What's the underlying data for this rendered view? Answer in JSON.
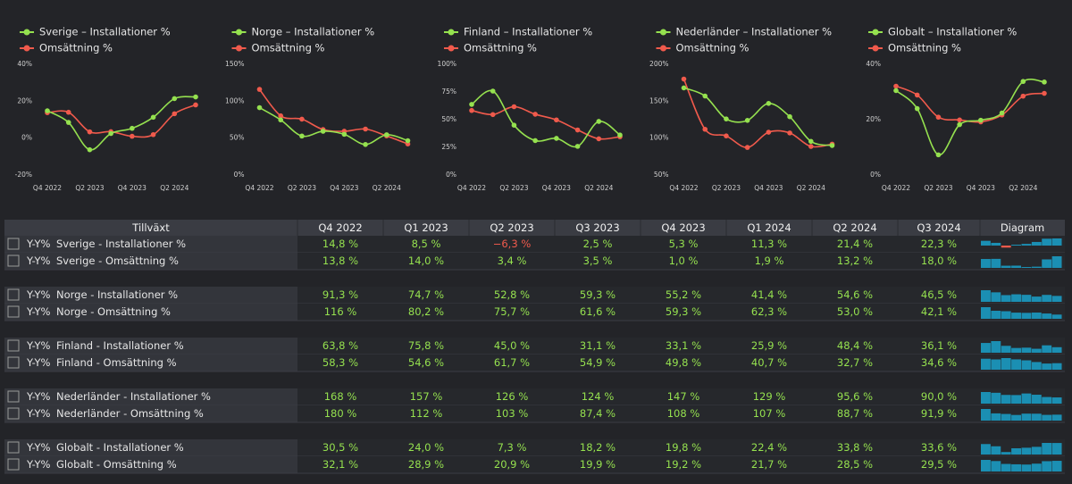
{
  "chart_data": [
    {
      "type": "line",
      "categories": [
        "Q4 2022",
        null,
        "Q2 2023",
        null,
        "Q4 2023",
        null,
        "Q2 2024",
        null
      ],
      "series": [
        {
          "name": "Sverige – Installationer %",
          "color": "#95e14f",
          "values": [
            14.8,
            8.5,
            -6.3,
            2.5,
            5.3,
            11.3,
            21.4,
            22.3
          ]
        },
        {
          "name": "Omsättning %",
          "color": "#f05a4c",
          "values": [
            13.8,
            14.0,
            3.4,
            3.5,
            1.0,
            1.9,
            13.2,
            18.0
          ]
        }
      ],
      "ylim": [
        -20,
        40
      ],
      "yticks": [
        {
          "value": -20,
          "label": "-20%"
        },
        {
          "value": 0,
          "label": "0%"
        },
        {
          "value": 20,
          "label": "20%"
        },
        {
          "value": 40,
          "label": "40%"
        }
      ],
      "grid": false
    },
    {
      "type": "line",
      "categories": [
        "Q4 2022",
        null,
        "Q2 2023",
        null,
        "Q4 2023",
        null,
        "Q2 2024",
        null
      ],
      "series": [
        {
          "name": "Norge – Installationer %",
          "color": "#95e14f",
          "values": [
            91.3,
            74.7,
            52.8,
            59.3,
            55.2,
            41.4,
            54.6,
            46.5
          ]
        },
        {
          "name": "Omsättning %",
          "color": "#f05a4c",
          "values": [
            116,
            80.2,
            75.7,
            61.6,
            59.3,
            62.3,
            53.0,
            42.1
          ]
        }
      ],
      "ylim": [
        0,
        150
      ],
      "yticks": [
        {
          "value": 0,
          "label": "0%"
        },
        {
          "value": 50,
          "label": "50%"
        },
        {
          "value": 100,
          "label": "100%"
        },
        {
          "value": 150,
          "label": "150%"
        }
      ],
      "grid": false
    },
    {
      "type": "line",
      "categories": [
        "Q4 2022",
        null,
        "Q2 2023",
        null,
        "Q4 2023",
        null,
        "Q2 2024",
        null
      ],
      "series": [
        {
          "name": "Finland – Installationer %",
          "color": "#95e14f",
          "values": [
            63.8,
            75.8,
            45.0,
            31.1,
            33.1,
            25.9,
            48.4,
            36.1
          ]
        },
        {
          "name": "Omsättning %",
          "color": "#f05a4c",
          "values": [
            58.3,
            54.6,
            61.7,
            54.9,
            49.8,
            40.7,
            32.7,
            34.6
          ]
        }
      ],
      "ylim": [
        0,
        100
      ],
      "yticks": [
        {
          "value": 0,
          "label": "0%"
        },
        {
          "value": 25,
          "label": "25%"
        },
        {
          "value": 50,
          "label": "50%"
        },
        {
          "value": 75,
          "label": "75%"
        },
        {
          "value": 100,
          "label": "100%"
        }
      ],
      "grid": false
    },
    {
      "type": "line",
      "categories": [
        "Q4 2022",
        null,
        "Q2 2023",
        null,
        "Q4 2023",
        null,
        "Q2 2024",
        null
      ],
      "series": [
        {
          "name": "Nederländer – Installationer %",
          "color": "#95e14f",
          "values": [
            168,
            157,
            126,
            124,
            147,
            129,
            95.6,
            90.0
          ]
        },
        {
          "name": "Omsättning %",
          "color": "#f05a4c",
          "values": [
            180,
            112,
            103,
            87.4,
            108,
            107,
            88.7,
            91.9
          ]
        }
      ],
      "ylim": [
        50,
        200
      ],
      "yticks": [
        {
          "value": 50,
          "label": "50%"
        },
        {
          "value": 100,
          "label": "100%"
        },
        {
          "value": 150,
          "label": "150%"
        },
        {
          "value": 200,
          "label": "200%"
        }
      ],
      "grid": false
    },
    {
      "type": "line",
      "categories": [
        "Q4 2022",
        null,
        "Q2 2023",
        null,
        "Q4 2023",
        null,
        "Q2 2024",
        null
      ],
      "series": [
        {
          "name": "Globalt – Installationer %",
          "color": "#95e14f",
          "values": [
            30.5,
            24.0,
            7.3,
            18.2,
            19.8,
            22.4,
            33.8,
            33.6
          ]
        },
        {
          "name": "Omsättning %",
          "color": "#f05a4c",
          "values": [
            32.1,
            28.9,
            20.9,
            19.9,
            19.2,
            21.7,
            28.5,
            29.5
          ]
        }
      ],
      "ylim": [
        0,
        40
      ],
      "yticks": [
        {
          "value": 0,
          "label": "0%"
        },
        {
          "value": 20,
          "label": "20%"
        },
        {
          "value": 40,
          "label": "40%"
        }
      ],
      "grid": false
    }
  ],
  "table": {
    "header": [
      "Tillväxt",
      "Q4 2022",
      "Q1 2023",
      "Q2 2023",
      "Q3 2023",
      "Q4 2023",
      "Q1 2024",
      "Q2 2024",
      "Q3 2024",
      "Diagram"
    ],
    "rows": [
      {
        "label": "Y-Y%",
        "name": "Sverige - Installationer %",
        "cells": [
          "14,8 %",
          "8,5 %",
          "−6,3 %",
          "2,5 %",
          "5,3 %",
          "11,3 %",
          "21,4 %",
          "22,3 %"
        ]
      },
      {
        "label": "Y-Y%",
        "name": "Sverige - Omsättning %",
        "cells": [
          "13,8 %",
          "14,0 %",
          "3,4 %",
          "3,5 %",
          "1,0 %",
          "1,9 %",
          "13,2 %",
          "18,0 %"
        ]
      },
      {
        "label": "Y-Y%",
        "name": "Norge - Installationer %",
        "cells": [
          "91,3 %",
          "74,7 %",
          "52,8 %",
          "59,3 %",
          "55,2 %",
          "41,4 %",
          "54,6 %",
          "46,5 %"
        ]
      },
      {
        "label": "Y-Y%",
        "name": "Norge - Omsättning %",
        "cells": [
          "116 %",
          "80,2 %",
          "75,7 %",
          "61,6 %",
          "59,3 %",
          "62,3 %",
          "53,0 %",
          "42,1 %"
        ]
      },
      {
        "label": "Y-Y%",
        "name": "Finland - Installationer %",
        "cells": [
          "63,8 %",
          "75,8 %",
          "45,0 %",
          "31,1 %",
          "33,1 %",
          "25,9 %",
          "48,4 %",
          "36,1 %"
        ]
      },
      {
        "label": "Y-Y%",
        "name": "Finland - Omsättning %",
        "cells": [
          "58,3 %",
          "54,6 %",
          "61,7 %",
          "54,9 %",
          "49,8 %",
          "40,7 %",
          "32,7 %",
          "34,6 %"
        ]
      },
      {
        "label": "Y-Y%",
        "name": "Nederländer - Installationer %",
        "cells": [
          "168 %",
          "157 %",
          "126 %",
          "124 %",
          "147 %",
          "129 %",
          "95,6 %",
          "90,0 %"
        ]
      },
      {
        "label": "Y-Y%",
        "name": "Nederländer - Omsättning %",
        "cells": [
          "180 %",
          "112 %",
          "103 %",
          "87,4 %",
          "108 %",
          "107 %",
          "88,7 %",
          "91,9 %"
        ]
      },
      {
        "label": "Y-Y%",
        "name": "Globalt - Installationer %",
        "cells": [
          "30,5 %",
          "24,0 %",
          "7,3 %",
          "18,2 %",
          "19,8 %",
          "22,4 %",
          "33,8 %",
          "33,6 %"
        ]
      },
      {
        "label": "Y-Y%",
        "name": "Globalt - Omsättning %",
        "cells": [
          "32,1 %",
          "28,9 %",
          "20,9 %",
          "19,9 %",
          "19,2 %",
          "21,7 %",
          "28,5 %",
          "29,5 %"
        ]
      }
    ]
  }
}
